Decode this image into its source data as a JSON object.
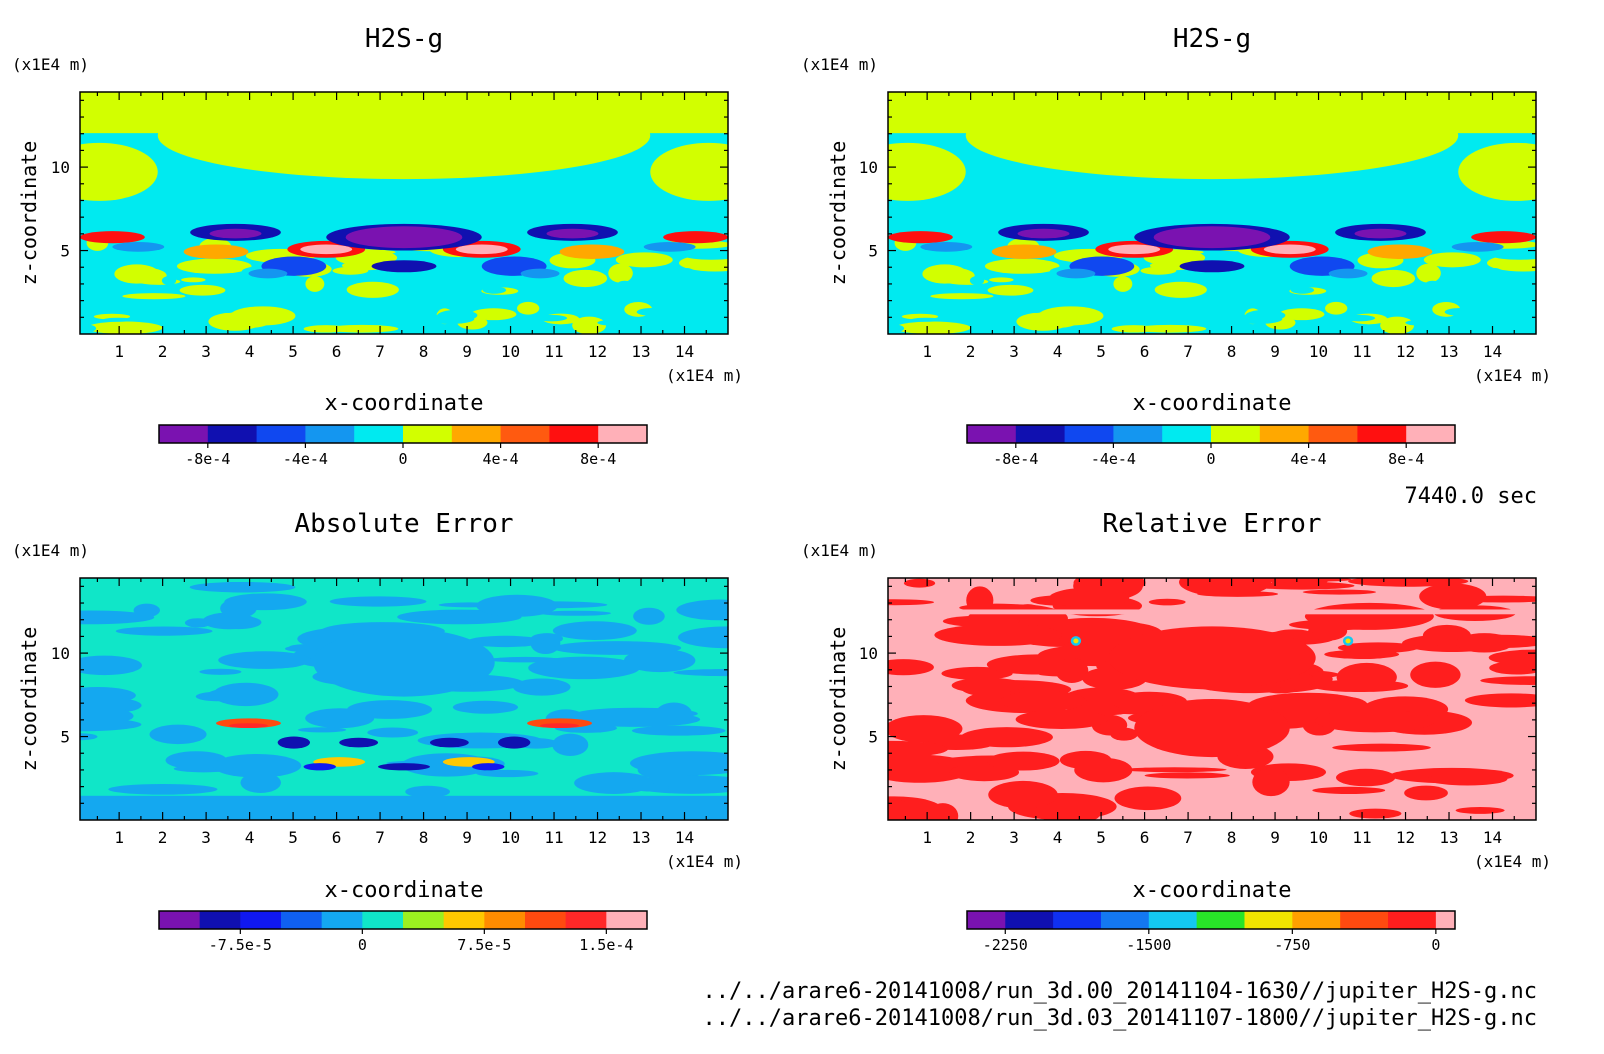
{
  "time_label": "7440.0 sec",
  "files": [
    "../../arare6-20141008/run_3d.00_20141104-1630//jupiter_H2S-g.nc",
    "../../arare6-20141008/run_3d.03_20141107-1800//jupiter_H2S-g.nc"
  ],
  "chart_data": [
    {
      "type": "heatmap",
      "title": "H2S-g",
      "xlabel": "x-coordinate",
      "ylabel": "z-coordinate",
      "x_unit": "(x1E4 m)",
      "y_unit": "(x1E4 m)",
      "x_ticks": [
        1,
        2,
        3,
        4,
        5,
        6,
        7,
        8,
        9,
        10,
        11,
        12,
        13,
        14
      ],
      "y_ticks": [
        5,
        10
      ],
      "xlim": [
        0.1,
        15
      ],
      "ylim": [
        0,
        14.5
      ],
      "colorbar": {
        "levels": [
          -0.001,
          -0.0008,
          -0.0006,
          -0.0004,
          -0.0002,
          0,
          0.0002,
          0.0004,
          0.0006,
          0.0008,
          0.001
        ],
        "colors": [
          "#7a12b0",
          "#1010b0",
          "#1048f0",
          "#1496f0",
          "#00eaf0",
          "#d2ff00",
          "#ffa800",
          "#ff5a10",
          "#ff1010",
          "#ffb0b8"
        ],
        "tick_values": [
          -0.0008,
          -0.0004,
          0,
          0.0004,
          0.0008
        ],
        "tick_labels": [
          "-8e-4",
          "-4e-4",
          "0",
          "4e-4",
          "8e-4"
        ]
      }
    },
    {
      "type": "heatmap",
      "title": "H2S-g",
      "xlabel": "x-coordinate",
      "ylabel": "z-coordinate",
      "x_unit": "(x1E4 m)",
      "y_unit": "(x1E4 m)",
      "x_ticks": [
        1,
        2,
        3,
        4,
        5,
        6,
        7,
        8,
        9,
        10,
        11,
        12,
        13,
        14
      ],
      "y_ticks": [
        5,
        10
      ],
      "xlim": [
        0.1,
        15
      ],
      "ylim": [
        0,
        14.5
      ],
      "colorbar": {
        "levels": [
          -0.001,
          -0.0008,
          -0.0006,
          -0.0004,
          -0.0002,
          0,
          0.0002,
          0.0004,
          0.0006,
          0.0008,
          0.001
        ],
        "colors": [
          "#7a12b0",
          "#1010b0",
          "#1048f0",
          "#1496f0",
          "#00eaf0",
          "#d2ff00",
          "#ffa800",
          "#ff5a10",
          "#ff1010",
          "#ffb0b8"
        ],
        "tick_values": [
          -0.0008,
          -0.0004,
          0,
          0.0004,
          0.0008
        ],
        "tick_labels": [
          "-8e-4",
          "-4e-4",
          "0",
          "4e-4",
          "8e-4"
        ]
      }
    },
    {
      "type": "heatmap",
      "title": "Absolute Error",
      "xlabel": "x-coordinate",
      "ylabel": "z-coordinate",
      "x_unit": "(x1E4 m)",
      "y_unit": "(x1E4 m)",
      "x_ticks": [
        1,
        2,
        3,
        4,
        5,
        6,
        7,
        8,
        9,
        10,
        11,
        12,
        13,
        14
      ],
      "y_ticks": [
        5,
        10
      ],
      "xlim": [
        0.1,
        15
      ],
      "ylim": [
        0,
        14.5
      ],
      "colorbar": {
        "levels": [
          -0.000125,
          -0.0001,
          -7.5e-05,
          -5e-05,
          -2.5e-05,
          0,
          2.5e-05,
          5e-05,
          7.5e-05,
          0.0001,
          0.000125,
          0.00015,
          0.000175
        ],
        "colors": [
          "#7a12b0",
          "#1010b0",
          "#1018f0",
          "#1060f0",
          "#14a8f0",
          "#10e6c8",
          "#9cf020",
          "#ffc800",
          "#ff8c00",
          "#ff4a10",
          "#ff2828",
          "#ffb0b8"
        ],
        "tick_values": [
          -7.5e-05,
          0,
          7.5e-05,
          0.00015
        ],
        "tick_labels": [
          "-7.5e-5",
          "0",
          "7.5e-5",
          "1.5e-4"
        ]
      }
    },
    {
      "type": "heatmap",
      "title": "Relative Error",
      "xlabel": "x-coordinate",
      "ylabel": "z-coordinate",
      "x_unit": "(x1E4 m)",
      "y_unit": "(x1E4 m)",
      "x_ticks": [
        1,
        2,
        3,
        4,
        5,
        6,
        7,
        8,
        9,
        10,
        11,
        12,
        13,
        14
      ],
      "y_ticks": [
        5,
        10
      ],
      "xlim": [
        0.1,
        15
      ],
      "ylim": [
        0,
        14.5
      ],
      "colorbar": {
        "levels": [
          -2450,
          -2250,
          -2000,
          -1750,
          -1500,
          -1250,
          -1000,
          -750,
          -500,
          -250,
          0,
          100
        ],
        "colors": [
          "#7a12b0",
          "#1010b0",
          "#1030f0",
          "#1478f0",
          "#14c8f0",
          "#28e628",
          "#f0e600",
          "#ffa000",
          "#ff4a10",
          "#ff1e1e",
          "#ffb0b8"
        ],
        "tick_values": [
          -2250,
          -1500,
          -750,
          0
        ],
        "tick_labels": [
          "-2250",
          "-1500",
          "-750",
          "0"
        ]
      }
    }
  ]
}
